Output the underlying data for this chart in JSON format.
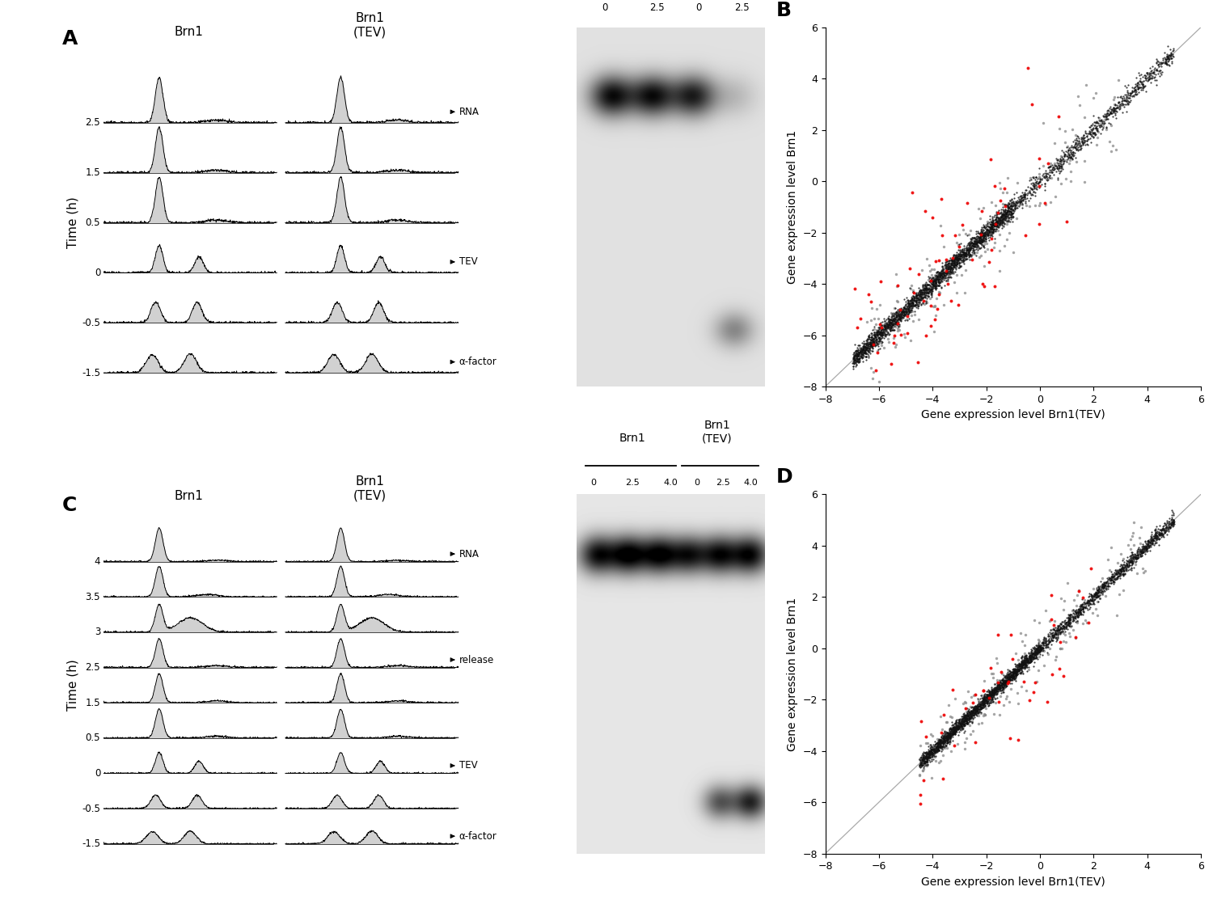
{
  "panel_A_times": [
    2.5,
    1.5,
    0.5,
    0.0,
    -0.5,
    -1.5
  ],
  "panel_C_times": [
    4.0,
    3.5,
    3.0,
    2.5,
    1.5,
    0.5,
    0.0,
    -0.5,
    -1.5
  ],
  "background_color": "#ffffff",
  "trace_color": "#000000",
  "fill_color": "#cccccc",
  "scatter_black": "#111111",
  "scatter_gray": "#888888",
  "scatter_red": "#ee0000",
  "diagonal_color": "#aaaaaa",
  "panel_B_xlabel": "Gene expression level Brn1(TEV)",
  "panel_B_ylabel": "Gene expression level Brn1",
  "panel_D_xlabel": "Gene expression level Brn1(TEV)",
  "panel_D_ylabel": "Gene expression level Brn1",
  "scatter_xlim_B": [
    -8,
    6
  ],
  "scatter_ylim_B": [
    -8,
    6
  ],
  "scatter_xlim_D": [
    -8,
    6
  ],
  "scatter_ylim_D": [
    -8,
    6
  ],
  "scatter_xticks_B": [
    -8,
    -6,
    -4,
    -2,
    0,
    2,
    4,
    6
  ],
  "scatter_yticks_B": [
    -8,
    -6,
    -4,
    -2,
    0,
    2,
    4,
    6
  ],
  "scatter_xticks_D": [
    -8,
    -6,
    -4,
    -2,
    0,
    2,
    4,
    6
  ],
  "scatter_yticks_D": [
    -8,
    -6,
    -4,
    -2,
    0,
    2,
    4,
    6
  ]
}
